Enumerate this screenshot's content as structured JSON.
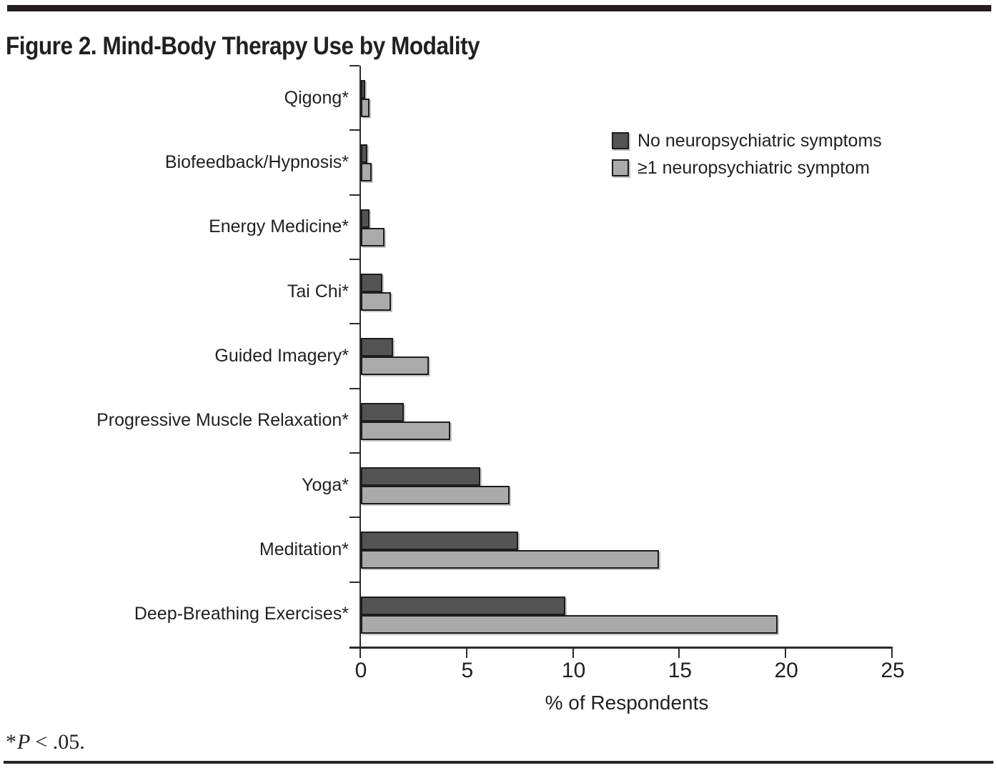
{
  "figure": {
    "footnote": {
      "star": "*",
      "variable": "P",
      "rest": "< .05."
    }
  },
  "chart_data": {
    "type": "bar",
    "orientation": "horizontal",
    "title": "Figure 2. Mind-Body Therapy Use by Modality",
    "categories": [
      "Qigong*",
      "Biofeedback/Hypnosis*",
      "Energy Medicine*",
      "Tai Chi*",
      "Guided Imagery*",
      "Progressive Muscle Relaxation*",
      "Yoga*",
      "Meditation*",
      "Deep-Breathing Exercises*"
    ],
    "series": [
      {
        "name": "No neuropsychiatric symptoms",
        "color": "#545454",
        "values": [
          0.2,
          0.3,
          0.4,
          1.0,
          1.5,
          2.0,
          5.6,
          7.4,
          9.6
        ]
      },
      {
        "name": "≥1 neuropsychiatric symptom",
        "color": "#aaaaac",
        "values": [
          0.4,
          0.5,
          1.1,
          1.4,
          3.2,
          4.2,
          7.0,
          14.0,
          19.6
        ]
      }
    ],
    "xlabel": "% of Respondents",
    "xlim": [
      0,
      25
    ],
    "xticks": [
      0,
      5,
      10,
      15,
      20,
      25
    ],
    "legend_position": "upper right",
    "grid": false,
    "bar_border_color": "#1d1d1d",
    "footnote": "*P < .05."
  }
}
